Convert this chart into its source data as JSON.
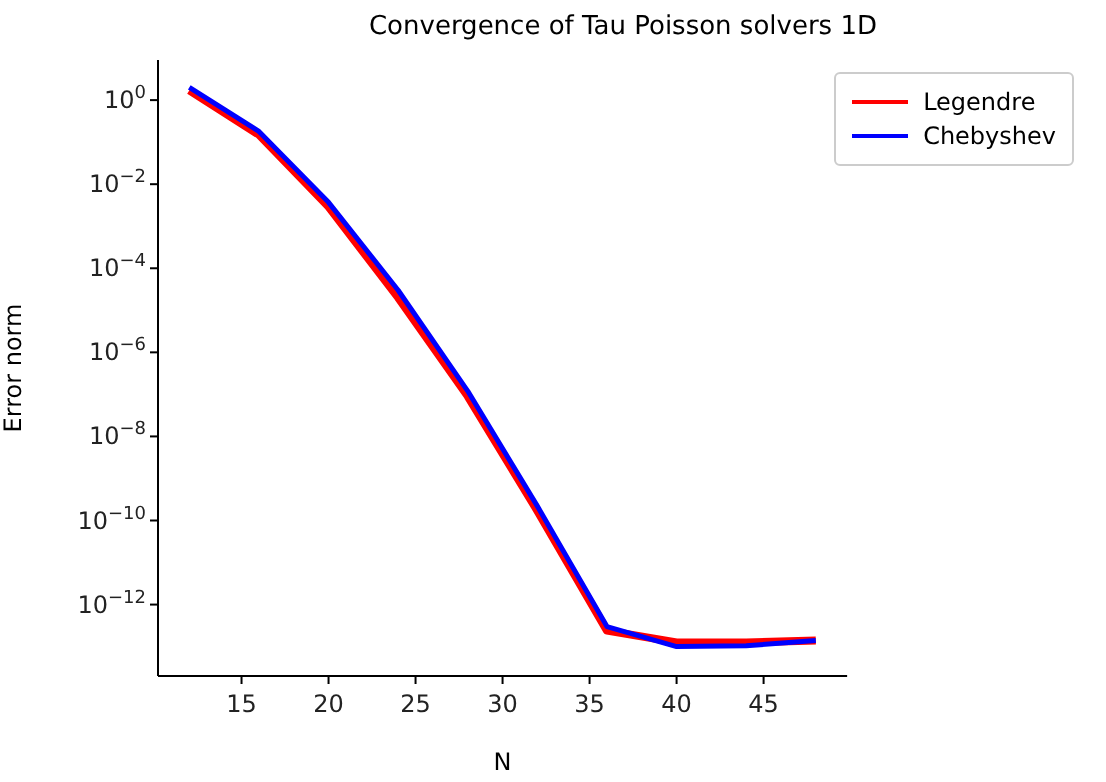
{
  "chart_data": {
    "type": "line",
    "title": "Convergence of Tau Poisson solvers 1D",
    "xlabel": "N",
    "ylabel": "Error norm",
    "x": [
      12,
      16,
      20,
      24,
      28,
      32,
      36,
      40,
      44,
      48
    ],
    "series": [
      {
        "name": "Legendre",
        "color": "#ff0000",
        "values": [
          1.7,
          0.15,
          0.0029,
          2e-05,
          9e-08,
          1.7e-10,
          2.4e-13,
          1.26e-13,
          1.26e-13,
          1.4e-13
        ]
      },
      {
        "name": "Chebyshev",
        "color": "#0000ff",
        "values": [
          2.0,
          0.18,
          0.0037,
          3e-05,
          1.2e-07,
          2.2e-10,
          3e-13,
          1e-13,
          1.05e-13,
          1.4e-13
        ]
      }
    ],
    "log": "y",
    "xlim": [
      10.2,
      49.8
    ],
    "xticks": [
      15,
      20,
      25,
      30,
      35,
      40,
      45
    ],
    "ylim": [
      2e-14,
      9
    ],
    "yticks": [
      {
        "value": 1,
        "label": "10$^{0}$"
      },
      {
        "value": 0.01,
        "label": "10$^{−2}$"
      },
      {
        "value": 0.0001,
        "label": "10$^{−4}$"
      },
      {
        "value": 1e-06,
        "label": "10$^{−6}$"
      },
      {
        "value": 1e-08,
        "label": "10$^{−8}$"
      },
      {
        "value": 1e-10,
        "label": "10$^{−10}$"
      },
      {
        "value": 1e-12,
        "label": "10$^{−12}$"
      }
    ],
    "grid": false,
    "legend": "top right",
    "marker": "none",
    "line_style": "solid"
  }
}
